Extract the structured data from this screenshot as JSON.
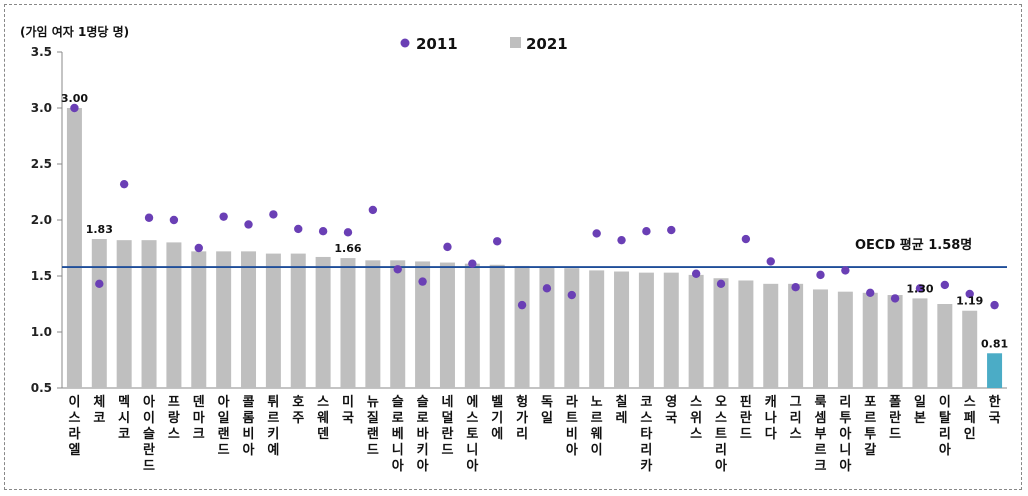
{
  "chart_data": {
    "type": "bar",
    "unit_label": "(가임 여자 1명당 명)",
    "ylim": [
      0.5,
      3.5
    ],
    "yticks": [
      "0.5",
      "1.0",
      "1.5",
      "2.0",
      "2.5",
      "3.0",
      "3.5"
    ],
    "categories": [
      "이스라엘",
      "체코",
      "멕시코",
      "아이슬란드",
      "프랑스",
      "덴마크",
      "아일랜드",
      "콜롬비아",
      "튀르키예",
      "호주",
      "스웨덴",
      "미국",
      "뉴질랜드",
      "슬로베니아",
      "슬로바키아",
      "네덜란드",
      "에스토니아",
      "벨기에",
      "헝가리",
      "독일",
      "라트비아",
      "노르웨이",
      "칠레",
      "코스타리카",
      "영국",
      "스위스",
      "오스트리아",
      "핀란드",
      "캐나다",
      "그리스",
      "룩셈부르크",
      "리투아니아",
      "포르투갈",
      "폴란드",
      "일본",
      "이탈리아",
      "스페인",
      "한국"
    ],
    "series": [
      {
        "name": "2021",
        "kind": "bar",
        "color": "#bfbfbf",
        "values": [
          3.0,
          1.83,
          1.82,
          1.82,
          1.8,
          1.72,
          1.72,
          1.72,
          1.7,
          1.7,
          1.67,
          1.66,
          1.64,
          1.64,
          1.63,
          1.62,
          1.61,
          1.6,
          1.59,
          1.58,
          1.57,
          1.55,
          1.54,
          1.53,
          1.53,
          1.51,
          1.48,
          1.46,
          1.43,
          1.43,
          1.38,
          1.36,
          1.35,
          1.33,
          1.3,
          1.25,
          1.19,
          0.81
        ]
      },
      {
        "name": "2011",
        "kind": "dot",
        "color": "#6a3fb5",
        "values": [
          3.0,
          1.43,
          2.32,
          2.02,
          2.0,
          1.75,
          2.03,
          1.96,
          2.05,
          1.92,
          1.9,
          1.89,
          2.09,
          1.56,
          1.45,
          1.76,
          1.61,
          1.81,
          1.24,
          1.39,
          1.33,
          1.88,
          1.82,
          1.9,
          1.91,
          1.52,
          1.43,
          1.83,
          1.63,
          1.4,
          1.51,
          1.55,
          1.35,
          1.3,
          1.39,
          1.42,
          1.34,
          1.24
        ]
      }
    ],
    "highlight": {
      "category": "한국",
      "color": "#4bacc6"
    },
    "data_labels": [
      {
        "index": 0,
        "text": "3.00"
      },
      {
        "index": 1,
        "text": "1.83"
      },
      {
        "index": 11,
        "text": "1.66"
      },
      {
        "index": 34,
        "text": "1.30"
      },
      {
        "index": 36,
        "text": "1.19"
      },
      {
        "index": 37,
        "text": "0.81"
      }
    ],
    "reference_line": {
      "value": 1.58,
      "label": "OECD 평균 1.58명",
      "color": "#1f4e99"
    },
    "legend_position": "top-center",
    "grid": false
  }
}
